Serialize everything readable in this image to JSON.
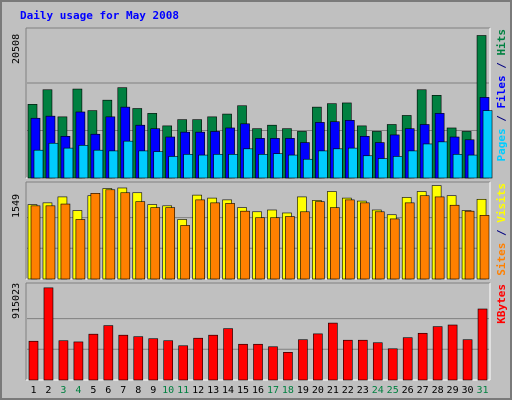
{
  "chart_data": {
    "type": "bar",
    "title": "Daily usage for May 2008",
    "x": [
      1,
      2,
      3,
      4,
      5,
      6,
      7,
      8,
      9,
      10,
      11,
      12,
      13,
      14,
      15,
      16,
      17,
      18,
      19,
      20,
      21,
      22,
      23,
      24,
      25,
      26,
      27,
      28,
      29,
      30,
      31
    ],
    "weekend_days": [
      3,
      4,
      10,
      11,
      17,
      18,
      24,
      25,
      31
    ],
    "panels": [
      {
        "id": "hits",
        "ymax_label": "20508",
        "ymax": 20508,
        "axis_label_parts": [
          {
            "text": "Pages",
            "color": "#00ccff"
          },
          {
            "text": " / ",
            "color": "#000080"
          },
          {
            "text": "Files",
            "color": "#0000ff"
          },
          {
            "text": " / ",
            "color": "#000080"
          },
          {
            "text": "Hits",
            "color": "#008040"
          }
        ],
        "series": [
          {
            "name": "Hits",
            "color": "#008040",
            "values": [
              10600,
              12700,
              8800,
              12800,
              9700,
              11200,
              13000,
              10000,
              9300,
              7500,
              8400,
              8400,
              8800,
              9200,
              10400,
              7100,
              7600,
              7100,
              6700,
              10200,
              10700,
              10800,
              7500,
              6700,
              7700,
              9000,
              12700,
              11900,
              7200,
              6700,
              20508
            ]
          },
          {
            "name": "Files",
            "color": "#0000ff",
            "values": [
              8600,
              8900,
              6000,
              9500,
              6300,
              8800,
              10200,
              7600,
              7100,
              5900,
              6600,
              6600,
              6700,
              7200,
              7800,
              5700,
              5700,
              5700,
              5100,
              8000,
              8100,
              8300,
              6000,
              5100,
              6200,
              7100,
              7700,
              9300,
              5900,
              5500,
              11600
            ]
          },
          {
            "name": "Pages",
            "color": "#00ccff",
            "values": [
              4000,
              5000,
              4300,
              4700,
              4000,
              3900,
              5300,
              3900,
              3800,
              3100,
              3400,
              3300,
              3400,
              3400,
              4200,
              3400,
              3500,
              3300,
              2700,
              3900,
              4200,
              4300,
              3200,
              2800,
              3100,
              3900,
              4900,
              5200,
              3400,
              3300,
              9700
            ]
          }
        ]
      },
      {
        "id": "visits",
        "ymax_label": "1549",
        "ymax": 1549,
        "axis_label_parts": [
          {
            "text": "Sites",
            "color": "#ff8000"
          },
          {
            "text": " / ",
            "color": "#000080"
          },
          {
            "text": "Visits",
            "color": "#ffff00"
          }
        ],
        "series": [
          {
            "name": "Visits",
            "color": "#ffff00",
            "values": [
              1250,
              1280,
              1380,
              1150,
              1400,
              1520,
              1530,
              1450,
              1250,
              1230,
              1000,
              1410,
              1360,
              1330,
              1200,
              1130,
              1160,
              1110,
              1380,
              1320,
              1470,
              1360,
              1310,
              1160,
              1080,
              1370,
              1470,
              1570,
              1400,
              1150,
              1340
            ]
          },
          {
            "name": "Sites",
            "color": "#ff8000",
            "values": [
              1230,
              1230,
              1260,
              1000,
              1440,
              1500,
              1450,
              1300,
              1200,
              1200,
              900,
              1330,
              1280,
              1270,
              1140,
              1030,
              1030,
              1050,
              1130,
              1300,
              1200,
              1330,
              1280,
              1130,
              1010,
              1280,
              1400,
              1380,
              1240,
              1140,
              1070
            ]
          }
        ]
      },
      {
        "id": "kbytes",
        "ymax_label": "915023",
        "ymax": 915023,
        "axis_label_parts": [
          {
            "text": "KBytes",
            "color": "#ff0000"
          }
        ],
        "series": [
          {
            "name": "KBytes",
            "color": "#ff0000",
            "values": [
              385000,
              915000,
              390000,
              378000,
              455000,
              540000,
              445000,
              430000,
              410000,
              390000,
              340000,
              415000,
              445000,
              510000,
              355000,
              355000,
              330000,
              275000,
              400000,
              458000,
              565000,
              395000,
              395000,
              370000,
              310000,
              420000,
              464000,
              530000,
              546000,
              400000,
              705000
            ]
          }
        ]
      }
    ],
    "colors": {
      "background": "#c0c0c0",
      "plot_area": "#c0c0c0",
      "grid": "#808080",
      "title": "#0000ff",
      "weekday_label": "#000000",
      "weekend_label": "#008040"
    }
  }
}
